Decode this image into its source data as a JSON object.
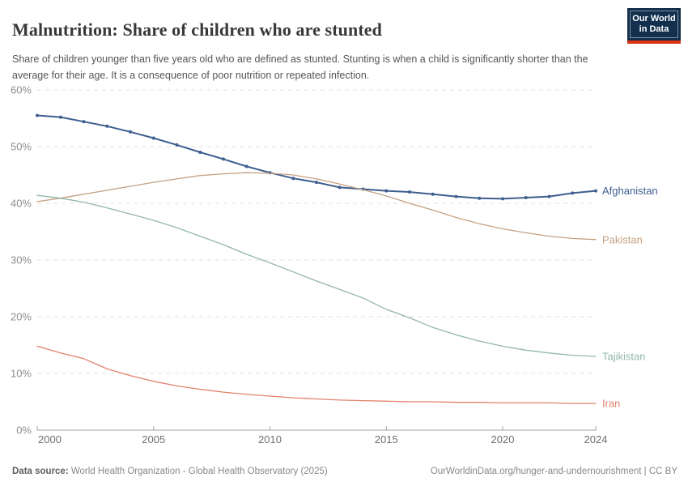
{
  "header": {
    "title": "Malnutrition: Share of children who are stunted",
    "subtitle": "Share of children younger than five years old who are defined as stunted. Stunting is when a child is significantly shorter than the average for their age. It is a consequence of poor nutrition or repeated infection.",
    "logo_line1": "Our World",
    "logo_line2": "in Data"
  },
  "footer": {
    "source_label": "Data source:",
    "source_text": " World Health Organization - Global Health Observatory (2025)",
    "link_text": "OurWorldinData.org/hunger-and-undernourishment",
    "separator": " | ",
    "license_text": "CC BY"
  },
  "colors": {
    "accent_navy": "#12304e",
    "accent_red": "#dc3214",
    "grid": "#e2e2e2",
    "axis": "#a3a3a3",
    "y_tick_label": "#8e8e8e",
    "x_tick_label": "#6e6e6e"
  },
  "chart_data": {
    "type": "line",
    "title": "Malnutrition: Share of children who are stunted",
    "xlabel": "",
    "ylabel": "",
    "xlim": [
      2000,
      2024
    ],
    "ylim": [
      0,
      60
    ],
    "grid": "horizontal-dashed",
    "legend_position": "line-end-labels-right",
    "x_ticks": [
      2000,
      2005,
      2010,
      2015,
      2020,
      2024
    ],
    "y_ticks": [
      0,
      10,
      20,
      30,
      40,
      50,
      60
    ],
    "y_tick_suffix": "%",
    "x": [
      2000,
      2001,
      2002,
      2003,
      2004,
      2005,
      2006,
      2007,
      2008,
      2009,
      2010,
      2011,
      2012,
      2013,
      2014,
      2015,
      2016,
      2017,
      2018,
      2019,
      2020,
      2021,
      2022,
      2023,
      2024
    ],
    "series": [
      {
        "name": "Afghanistan",
        "color": "#3d5e8f",
        "markers": true,
        "values": [
          55.5,
          55.2,
          54.4,
          53.6,
          52.6,
          51.5,
          50.3,
          49.0,
          47.8,
          46.5,
          45.4,
          44.4,
          43.7,
          42.8,
          42.5,
          42.2,
          42.0,
          41.6,
          41.2,
          40.9,
          40.8,
          41.0,
          41.2,
          41.8,
          42.2
        ]
      },
      {
        "name": "Pakistan",
        "color": "#c4a183",
        "markers": false,
        "values": [
          40.3,
          40.9,
          41.6,
          42.3,
          43.0,
          43.7,
          44.3,
          44.9,
          45.2,
          45.4,
          45.3,
          45.0,
          44.3,
          43.4,
          42.4,
          41.3,
          40.0,
          38.8,
          37.5,
          36.4,
          35.5,
          34.8,
          34.2,
          33.8,
          33.6
        ]
      },
      {
        "name": "Tajikistan",
        "color": "#92b7a8",
        "markers": false,
        "values": [
          41.4,
          40.9,
          40.2,
          39.2,
          38.1,
          37.0,
          35.7,
          34.2,
          32.7,
          31.0,
          29.5,
          27.9,
          26.3,
          24.8,
          23.3,
          21.3,
          19.8,
          18.1,
          16.8,
          15.7,
          14.8,
          14.1,
          13.6,
          13.2,
          13.0
        ]
      },
      {
        "name": "Iran",
        "color": "#e2826b",
        "markers": false,
        "values": [
          14.8,
          13.6,
          12.6,
          10.8,
          9.6,
          8.6,
          7.8,
          7.2,
          6.7,
          6.3,
          6.0,
          5.7,
          5.5,
          5.3,
          5.2,
          5.1,
          5.0,
          5.0,
          4.9,
          4.9,
          4.8,
          4.8,
          4.8,
          4.7,
          4.7
        ]
      }
    ]
  }
}
